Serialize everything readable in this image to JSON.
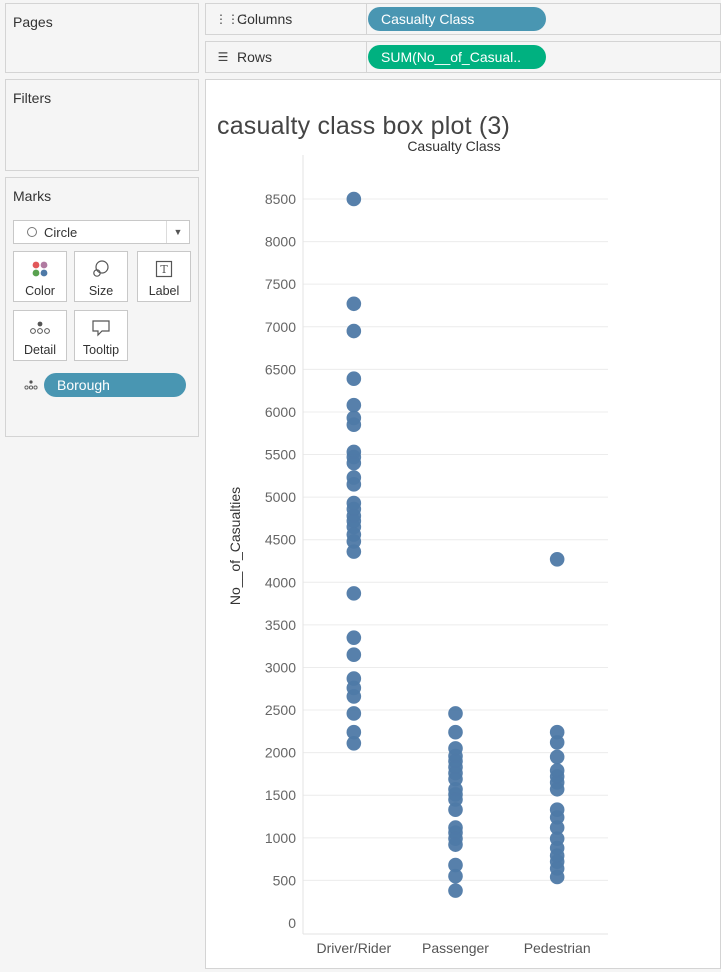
{
  "sidebar": {
    "pages_title": "Pages",
    "filters_title": "Filters",
    "marks_title": "Marks",
    "mark_type": "Circle",
    "mark_buttons": {
      "color": "Color",
      "size": "Size",
      "label": "Label",
      "detail": "Detail",
      "tooltip": "Tooltip"
    },
    "detail_pill": "Borough",
    "detail_pill_icon": "detail-dots-icon"
  },
  "shelves": {
    "columns_label": "Columns",
    "columns_icon": "columns-icon",
    "columns_pill": "Casualty Class",
    "rows_label": "Rows",
    "rows_icon": "rows-icon",
    "rows_pill": "SUM(No__of_Casual.."
  },
  "colors": {
    "dimension_pill": "#4996b2",
    "measure_pill": "#00b180",
    "mark": "#4e79a7"
  },
  "viz": {
    "title": "casualty class box plot (3)"
  },
  "chart_data": {
    "type": "scatter",
    "title": "casualty class box plot (3)",
    "xlabel": "Casualty Class",
    "ylabel": "No__of_Casualties",
    "categories": [
      "Driver/Rider",
      "Passenger",
      "Pedestrian"
    ],
    "yticks": [
      0,
      500,
      1000,
      1500,
      2000,
      2500,
      3000,
      3500,
      4000,
      4500,
      5000,
      5500,
      6000,
      6500,
      7000,
      7500,
      8000,
      8500
    ],
    "ylim": [
      0,
      8750
    ],
    "grid": true,
    "series": [
      {
        "category": "Driver/Rider",
        "values": [
          8500,
          7270,
          6950,
          6390,
          6080,
          5930,
          5850,
          5530,
          5470,
          5400,
          5230,
          5150,
          4930,
          4860,
          4780,
          4720,
          4650,
          4560,
          4480,
          4360,
          3870,
          3350,
          3150,
          2870,
          2760,
          2660,
          2460,
          2240,
          2110
        ]
      },
      {
        "category": "Passenger",
        "values": [
          2460,
          2240,
          2050,
          1960,
          1900,
          1830,
          1760,
          1690,
          1570,
          1510,
          1450,
          1330,
          1120,
          1060,
          990,
          920,
          680,
          550,
          380
        ]
      },
      {
        "category": "Pedestrian",
        "values": [
          4270,
          2240,
          2120,
          1950,
          1790,
          1720,
          1650,
          1570,
          1330,
          1240,
          1120,
          990,
          880,
          790,
          720,
          640,
          540
        ]
      }
    ]
  }
}
